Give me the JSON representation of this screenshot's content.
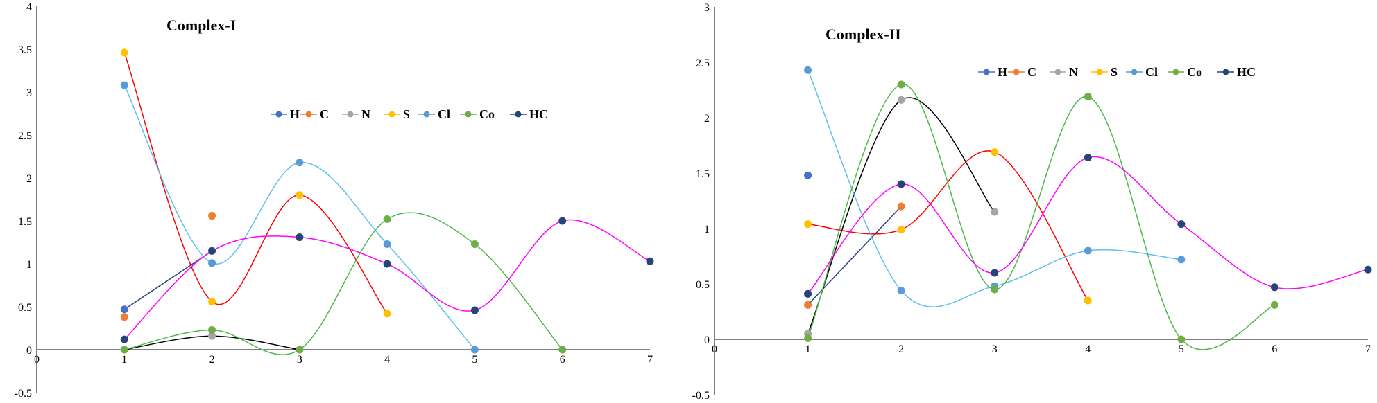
{
  "chart_data": [
    {
      "type": "line",
      "title": "Complex-I",
      "x_ticks": [
        0,
        1,
        2,
        3,
        4,
        5,
        6,
        7
      ],
      "y_ticks": [
        -0.5,
        0,
        0.5,
        1,
        1.5,
        2,
        2.5,
        3,
        3.5,
        4
      ],
      "xlim": [
        0,
        7
      ],
      "ylim": [
        -0.5,
        4
      ],
      "grid": false,
      "legend_position": "top-right",
      "series": [
        {
          "name": "H",
          "color": "#4472C4",
          "points": [
            [
              1,
              0.47
            ]
          ]
        },
        {
          "name": "C",
          "color": "#ED7D31",
          "points": [
            [
              1,
              0.38
            ],
            [
              2,
              1.56
            ]
          ]
        },
        {
          "name": "N",
          "color": "#A5A5A5",
          "points": [
            [
              1,
              0
            ],
            [
              2,
              0.16
            ],
            [
              3,
              0
            ]
          ]
        },
        {
          "name": "S",
          "color": "#FFC000",
          "points": [
            [
              1,
              3.46
            ],
            [
              2,
              0.56
            ],
            [
              3,
              1.8
            ],
            [
              4,
              0.42
            ]
          ]
        },
        {
          "name": "Cl",
          "color": "#5B9BD5",
          "points": [
            [
              1,
              3.08
            ],
            [
              2,
              1.01
            ],
            [
              3,
              2.18
            ],
            [
              4,
              1.23
            ],
            [
              5,
              0
            ]
          ]
        },
        {
          "name": "Co",
          "color": "#70AD47",
          "points": [
            [
              1,
              0
            ],
            [
              2,
              0.23
            ],
            [
              3,
              0
            ],
            [
              4,
              1.52
            ],
            [
              5,
              1.23
            ],
            [
              6,
              0
            ]
          ]
        },
        {
          "name": "HC",
          "color": "#264478",
          "points": [
            [
              1,
              0.12
            ],
            [
              2,
              1.15
            ],
            [
              3,
              1.31
            ],
            [
              4,
              1.0
            ],
            [
              5,
              0.46
            ],
            [
              6,
              1.5
            ],
            [
              7,
              1.03
            ]
          ]
        }
      ],
      "curves": [
        {
          "color": "#264478",
          "smooth": false,
          "points": [
            [
              1,
              0.47
            ],
            [
              2,
              1.15
            ]
          ]
        },
        {
          "color": "#FF0000",
          "smooth": true,
          "points": [
            [
              1,
              3.46
            ],
            [
              2,
              0.56
            ],
            [
              3,
              1.8
            ],
            [
              4,
              0.42
            ]
          ]
        },
        {
          "color": "#000000",
          "smooth": true,
          "points": [
            [
              1,
              0
            ],
            [
              2,
              0.16
            ],
            [
              3,
              0
            ]
          ]
        },
        {
          "color": "#5BC0EB",
          "smooth": true,
          "points": [
            [
              1,
              3.08
            ],
            [
              2,
              1.01
            ],
            [
              3,
              2.18
            ],
            [
              4,
              1.23
            ],
            [
              5,
              0
            ]
          ]
        },
        {
          "color": "#4CB848",
          "smooth": true,
          "points": [
            [
              1,
              0
            ],
            [
              2,
              0.23
            ],
            [
              3,
              0
            ],
            [
              4,
              1.52
            ],
            [
              5,
              1.23
            ],
            [
              6,
              0
            ]
          ]
        },
        {
          "color": "#FF00FF",
          "smooth": true,
          "points": [
            [
              1,
              0.12
            ],
            [
              2,
              1.15
            ],
            [
              3,
              1.31
            ],
            [
              4,
              1.0
            ],
            [
              5,
              0.46
            ],
            [
              6,
              1.5
            ],
            [
              7,
              1.03
            ]
          ]
        }
      ]
    },
    {
      "type": "line",
      "title": "Complex-II",
      "x_ticks": [
        0,
        1,
        2,
        3,
        4,
        5,
        6,
        7
      ],
      "y_ticks": [
        -0.5,
        0,
        0.5,
        1,
        1.5,
        2,
        2.5,
        3
      ],
      "xlim": [
        0,
        7
      ],
      "ylim": [
        -0.5,
        3
      ],
      "grid": false,
      "legend_position": "top-right",
      "series": [
        {
          "name": "H",
          "color": "#4472C4",
          "points": [
            [
              1,
              1.48
            ]
          ]
        },
        {
          "name": "C",
          "color": "#ED7D31",
          "points": [
            [
              1,
              0.31
            ],
            [
              2,
              1.2
            ]
          ]
        },
        {
          "name": "N",
          "color": "#A5A5A5",
          "points": [
            [
              1,
              0.05
            ],
            [
              2,
              2.16
            ],
            [
              3,
              1.15
            ]
          ]
        },
        {
          "name": "S",
          "color": "#FFC000",
          "points": [
            [
              1,
              1.04
            ],
            [
              2,
              0.99
            ],
            [
              3,
              1.69
            ],
            [
              4,
              0.35
            ]
          ]
        },
        {
          "name": "Cl",
          "color": "#5B9BD5",
          "points": [
            [
              1,
              2.43
            ],
            [
              2,
              0.44
            ],
            [
              3,
              0.48
            ],
            [
              4,
              0.8
            ],
            [
              5,
              0.72
            ]
          ]
        },
        {
          "name": "Co",
          "color": "#70AD47",
          "points": [
            [
              1,
              0.01
            ],
            [
              2,
              2.3
            ],
            [
              3,
              0.45
            ],
            [
              4,
              2.19
            ],
            [
              5,
              0
            ],
            [
              6,
              0.31
            ]
          ]
        },
        {
          "name": "HC",
          "color": "#264478",
          "points": [
            [
              1,
              0.41
            ],
            [
              2,
              1.4
            ],
            [
              3,
              0.6
            ],
            [
              4,
              1.64
            ],
            [
              5,
              1.04
            ],
            [
              6,
              0.47
            ],
            [
              7,
              0.63
            ]
          ]
        }
      ],
      "curves": [
        {
          "color": "#264478",
          "smooth": false,
          "points": [
            [
              1,
              0.31
            ],
            [
              2,
              1.2
            ]
          ]
        },
        {
          "color": "#FF0000",
          "smooth": true,
          "points": [
            [
              1,
              1.04
            ],
            [
              2,
              0.99
            ],
            [
              3,
              1.69
            ],
            [
              4,
              0.35
            ]
          ]
        },
        {
          "color": "#000000",
          "smooth": true,
          "points": [
            [
              1,
              0.05
            ],
            [
              2,
              2.16
            ],
            [
              3,
              1.15
            ]
          ]
        },
        {
          "color": "#5BC0EB",
          "smooth": true,
          "points": [
            [
              1,
              2.43
            ],
            [
              2,
              0.44
            ],
            [
              3,
              0.48
            ],
            [
              4,
              0.8
            ],
            [
              5,
              0.72
            ]
          ]
        },
        {
          "color": "#4CB848",
          "smooth": true,
          "points": [
            [
              1,
              0.01
            ],
            [
              2,
              2.3
            ],
            [
              3,
              0.45
            ],
            [
              4,
              2.19
            ],
            [
              5,
              0
            ],
            [
              6,
              0.31
            ]
          ]
        },
        {
          "color": "#FF00FF",
          "smooth": true,
          "points": [
            [
              1,
              0.41
            ],
            [
              2,
              1.4
            ],
            [
              3,
              0.6
            ],
            [
              4,
              1.64
            ],
            [
              5,
              1.04
            ],
            [
              6,
              0.47
            ],
            [
              7,
              0.63
            ]
          ]
        }
      ]
    }
  ]
}
